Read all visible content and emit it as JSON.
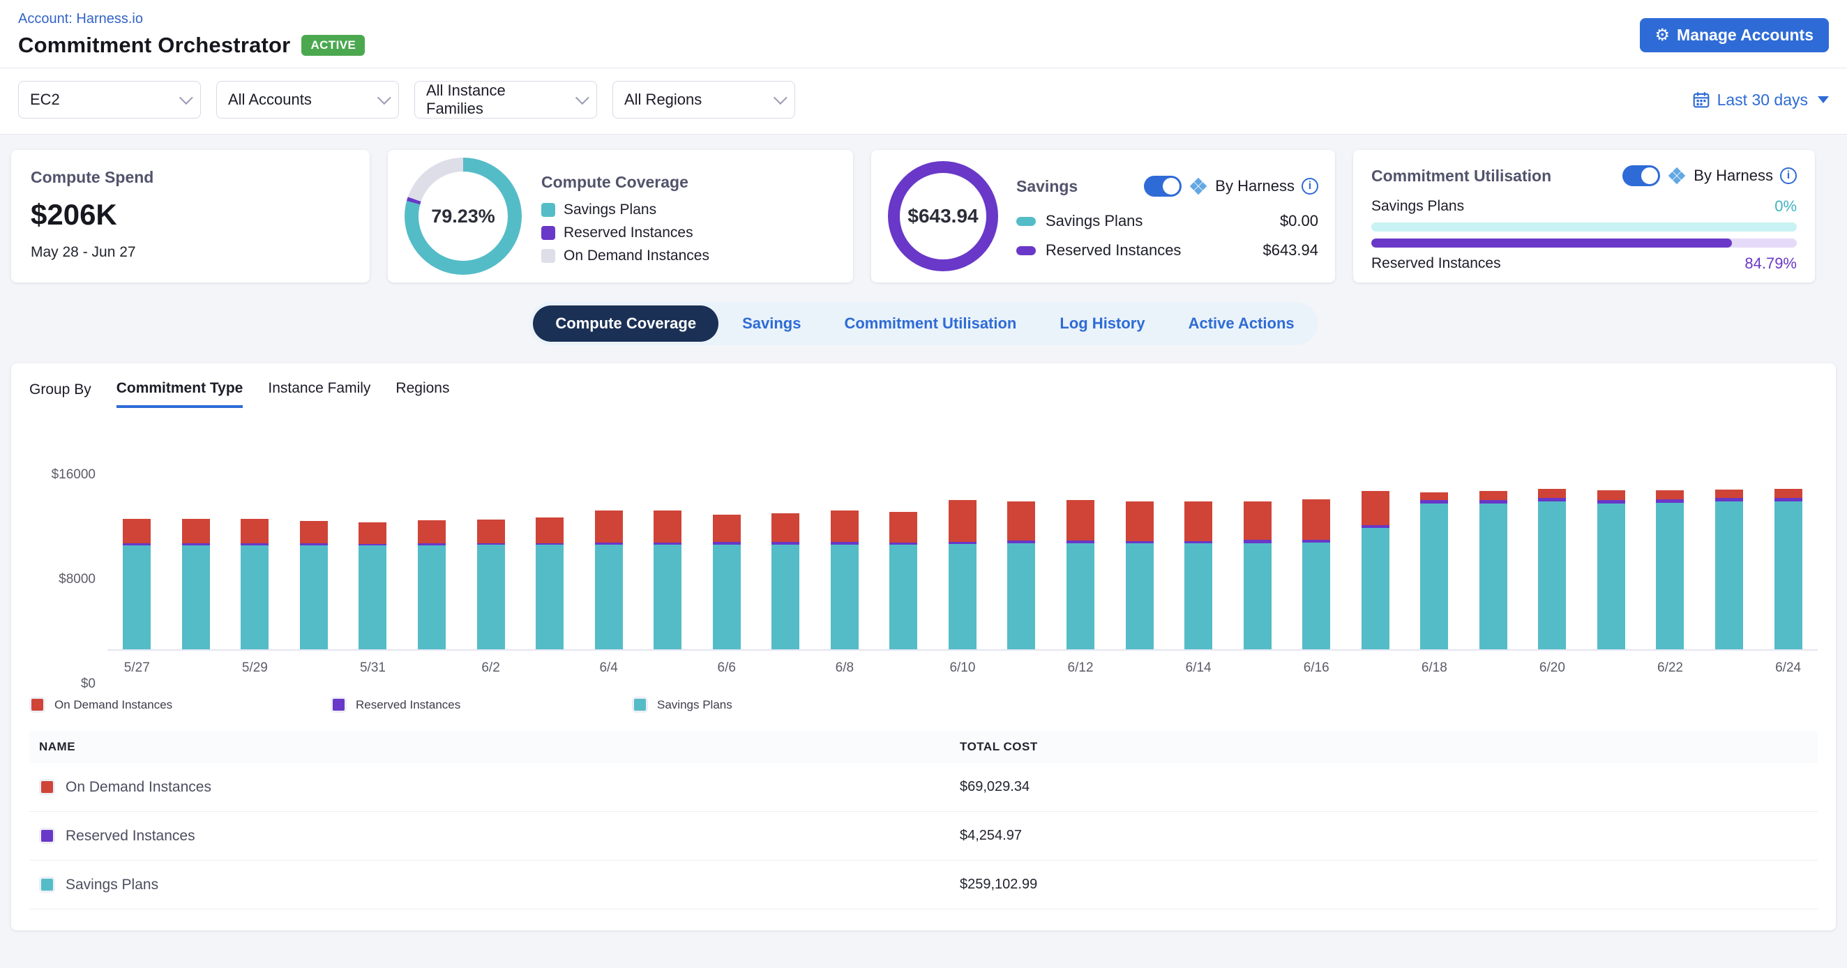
{
  "header": {
    "breadcrumb": "Account: Harness.io",
    "title": "Commitment Orchestrator",
    "status_badge": "ACTIVE",
    "manage_accounts_label": "Manage Accounts"
  },
  "filters": {
    "service": "EC2",
    "accounts": "All Accounts",
    "instance_families": "All Instance Families",
    "regions": "All Regions",
    "date_range": "Last 30 days"
  },
  "cards": {
    "compute_spend": {
      "title": "Compute Spend",
      "value": "$206K",
      "period": "May 28 - Jun 27"
    },
    "compute_coverage": {
      "title": "Compute Coverage",
      "percent": "79.23%",
      "segments": [
        {
          "color_key": "teal",
          "pct": 79.23
        },
        {
          "color_key": "purple",
          "pct": 1.1
        },
        {
          "color_key": "coverage_gray",
          "pct": 19.67
        }
      ],
      "legend": [
        {
          "label": "Savings Plans",
          "color_key": "teal"
        },
        {
          "label": "Reserved Instances",
          "color_key": "purple"
        },
        {
          "label": "On Demand Instances",
          "color_key": "coverage_gray"
        }
      ]
    },
    "savings": {
      "title": "Savings",
      "total": "$643.94",
      "toggle_label": "By Harness",
      "rows": [
        {
          "label": "Savings Plans",
          "value": "$0.00",
          "color_key": "teal"
        },
        {
          "label": "Reserved Instances",
          "value": "$643.94",
          "color_key": "purple"
        }
      ]
    },
    "commitment_utilisation": {
      "title": "Commitment Utilisation",
      "toggle_label": "By Harness",
      "savings_plans_label": "Savings Plans",
      "savings_plans_pct": "0%",
      "savings_plans_fill": 0,
      "reserved_label": "Reserved Instances",
      "reserved_pct": "84.79%",
      "reserved_fill": 84.79
    }
  },
  "tabs": {
    "active_index": 0,
    "items": [
      "Compute Coverage",
      "Savings",
      "Commitment Utilisation",
      "Log History",
      "Active Actions"
    ]
  },
  "group_by": {
    "label": "Group By",
    "active": "Commitment Type",
    "options": [
      "Commitment Type",
      "Instance Family",
      "Regions"
    ]
  },
  "chart_data": {
    "type": "bar",
    "stacked": true,
    "title": "Compute coverage by commitment type, daily cost",
    "x": [
      "5/27",
      "5/28",
      "5/29",
      "5/30",
      "5/31",
      "6/1",
      "6/2",
      "6/3",
      "6/4",
      "6/5",
      "6/6",
      "6/7",
      "6/8",
      "6/9",
      "6/10",
      "6/11",
      "6/12",
      "6/13",
      "6/14",
      "6/15",
      "6/16",
      "6/17",
      "6/18",
      "6/19",
      "6/20",
      "6/21",
      "6/22",
      "6/23",
      "6/24"
    ],
    "xtick_every": 2,
    "ylim": [
      0,
      16000
    ],
    "yticks": [
      "$0",
      "$8000",
      "$16000"
    ],
    "grid": false,
    "legend_position": "bottom",
    "series": [
      {
        "name": "Savings Plans",
        "color_key": "teal",
        "values": [
          7950,
          7950,
          7950,
          7950,
          7950,
          7950,
          8000,
          8000,
          8000,
          8000,
          8000,
          8000,
          8000,
          8000,
          8050,
          8100,
          8100,
          8100,
          8100,
          8100,
          8150,
          9300,
          11150,
          11150,
          11300,
          11150,
          11200,
          11300,
          11300
        ]
      },
      {
        "name": "Reserved Instances",
        "color_key": "purple",
        "values": [
          150,
          150,
          150,
          150,
          120,
          150,
          120,
          120,
          150,
          150,
          200,
          200,
          200,
          150,
          150,
          200,
          200,
          150,
          150,
          250,
          200,
          200,
          250,
          250,
          250,
          250,
          250,
          250,
          250
        ]
      },
      {
        "name": "On Demand Instances",
        "color_key": "red",
        "values": [
          1900,
          1850,
          1850,
          1700,
          1650,
          1750,
          1800,
          1950,
          2450,
          2450,
          2100,
          2200,
          2400,
          2350,
          3200,
          3000,
          3100,
          3050,
          3050,
          2950,
          3100,
          2600,
          600,
          700,
          700,
          750,
          700,
          650,
          700
        ]
      }
    ]
  },
  "chart_legend": [
    {
      "label": "On Demand Instances",
      "color_key": "red"
    },
    {
      "label": "Reserved Instances",
      "color_key": "purple"
    },
    {
      "label": "Savings Plans",
      "color_key": "teal"
    }
  ],
  "table": {
    "columns": [
      "NAME",
      "TOTAL COST"
    ],
    "rows": [
      {
        "name": "On Demand Instances",
        "color_key": "red",
        "total": "$69,029.34"
      },
      {
        "name": "Reserved Instances",
        "color_key": "purple",
        "total": "$4,254.97"
      },
      {
        "name": "Savings Plans",
        "color_key": "teal",
        "total": "$259,102.99"
      }
    ]
  },
  "colors": {
    "teal": "#54bcc7",
    "purple": "#6938c8",
    "red": "#cf4437",
    "coverage_gray": "#dddee8",
    "accent_blue": "#2e6bd6",
    "dark_navy": "#1b3055",
    "green": "#4ba84f",
    "sp_track": "#c9f2f4",
    "ri_track": "#e5dbf8"
  }
}
